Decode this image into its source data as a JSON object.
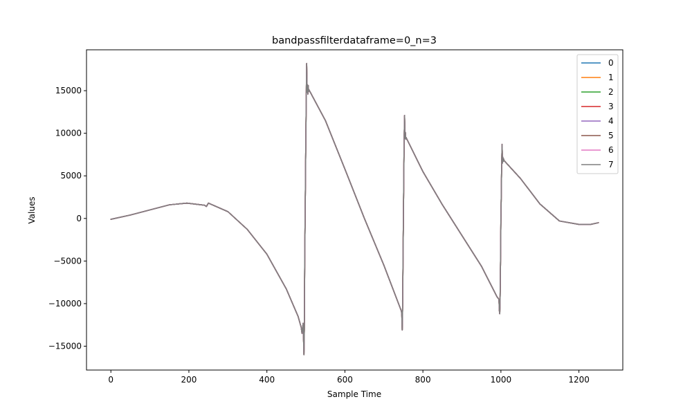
{
  "chart_data": {
    "type": "line",
    "title": "bandpassfilterdataframe=0_n=3",
    "xlabel": "Sample Time",
    "ylabel": "Values",
    "xlim": [
      -62.5,
      1312.5
    ],
    "ylim": [
      -17800,
      19800
    ],
    "xticks": [
      0,
      200,
      400,
      600,
      800,
      1000,
      1200
    ],
    "yticks": [
      -15000,
      -10000,
      -5000,
      0,
      5000,
      10000,
      15000
    ],
    "grid": false,
    "legend_position": "top-right",
    "series": [
      {
        "name": "0",
        "color": "#1f77b4"
      },
      {
        "name": "1",
        "color": "#ff7f0e"
      },
      {
        "name": "2",
        "color": "#2ca02c"
      },
      {
        "name": "3",
        "color": "#d62728"
      },
      {
        "name": "4",
        "color": "#9467bd"
      },
      {
        "name": "5",
        "color": "#8c564b"
      },
      {
        "name": "6",
        "color": "#e377c2"
      },
      {
        "name": "7",
        "color": "#7f7f7f"
      }
    ],
    "shared_values": {
      "x": [
        0,
        50,
        100,
        150,
        195,
        240,
        245,
        250,
        255,
        300,
        350,
        400,
        450,
        480,
        488,
        490,
        493,
        495,
        496,
        497,
        498,
        499,
        500,
        501,
        502,
        503,
        504,
        505,
        506,
        507,
        508,
        550,
        600,
        650,
        700,
        740,
        745,
        746,
        747,
        748,
        749,
        750,
        751,
        752,
        753,
        754,
        755,
        756,
        757,
        758,
        800,
        850,
        900,
        950,
        990,
        995,
        996,
        997,
        998,
        999,
        1000,
        1001,
        1002,
        1003,
        1004,
        1005,
        1006,
        1007,
        1008,
        1050,
        1100,
        1150,
        1200,
        1230,
        1250
      ],
      "y": [
        -100,
        400,
        1000,
        1600,
        1800,
        1550,
        1400,
        1800,
        1700,
        800,
        -1300,
        -4200,
        -8300,
        -11500,
        -12800,
        -13500,
        -12300,
        -16000,
        -13000,
        -5000,
        0,
        5000,
        10000,
        14500,
        18200,
        14800,
        15700,
        14600,
        15600,
        14900,
        15100,
        11500,
        5800,
        0,
        -5500,
        -10300,
        -10900,
        -11400,
        -13100,
        -10400,
        -5000,
        0,
        5000,
        9500,
        12100,
        9400,
        10100,
        9300,
        9500,
        9400,
        5500,
        1600,
        -2000,
        -5600,
        -9200,
        -9500,
        -10800,
        -11200,
        -9100,
        -5000,
        0,
        3000,
        6500,
        8700,
        6500,
        7200,
        6700,
        7000,
        6800,
        4700,
        1700,
        -300,
        -700,
        -700,
        -500
      ]
    }
  }
}
